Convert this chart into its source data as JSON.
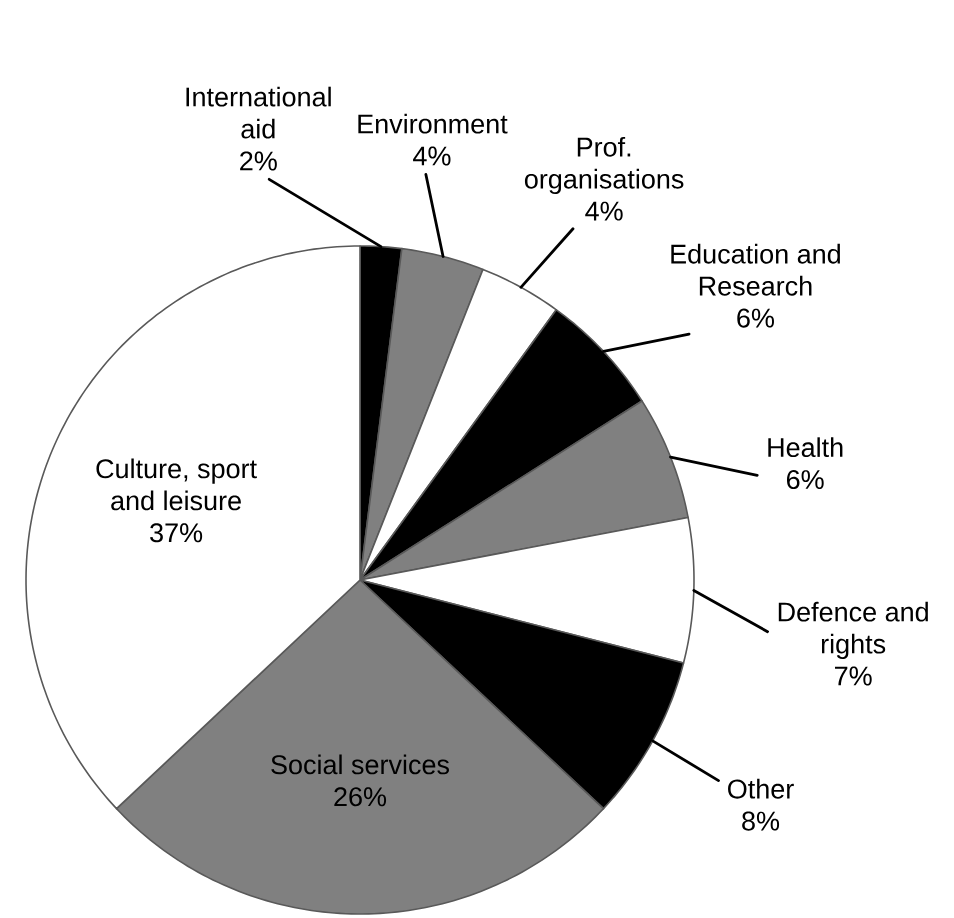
{
  "chart_data": {
    "type": "pie",
    "categories": [
      "International aid",
      "Environment",
      "Prof. organisations",
      "Education and Research",
      "Health",
      "Defence and rights",
      "Other",
      "Social services",
      "Culture, sport and leisure"
    ],
    "values": [
      2,
      4,
      4,
      6,
      6,
      7,
      8,
      26,
      37
    ],
    "colors": [
      "#000000",
      "#808080",
      "#ffffff",
      "#000000",
      "#808080",
      "#ffffff",
      "#000000",
      "#808080",
      "#ffffff"
    ],
    "value_labels": [
      "2%",
      "4%",
      "4%",
      "6%",
      "6%",
      "7%",
      "8%",
      "26%",
      "37%"
    ]
  }
}
